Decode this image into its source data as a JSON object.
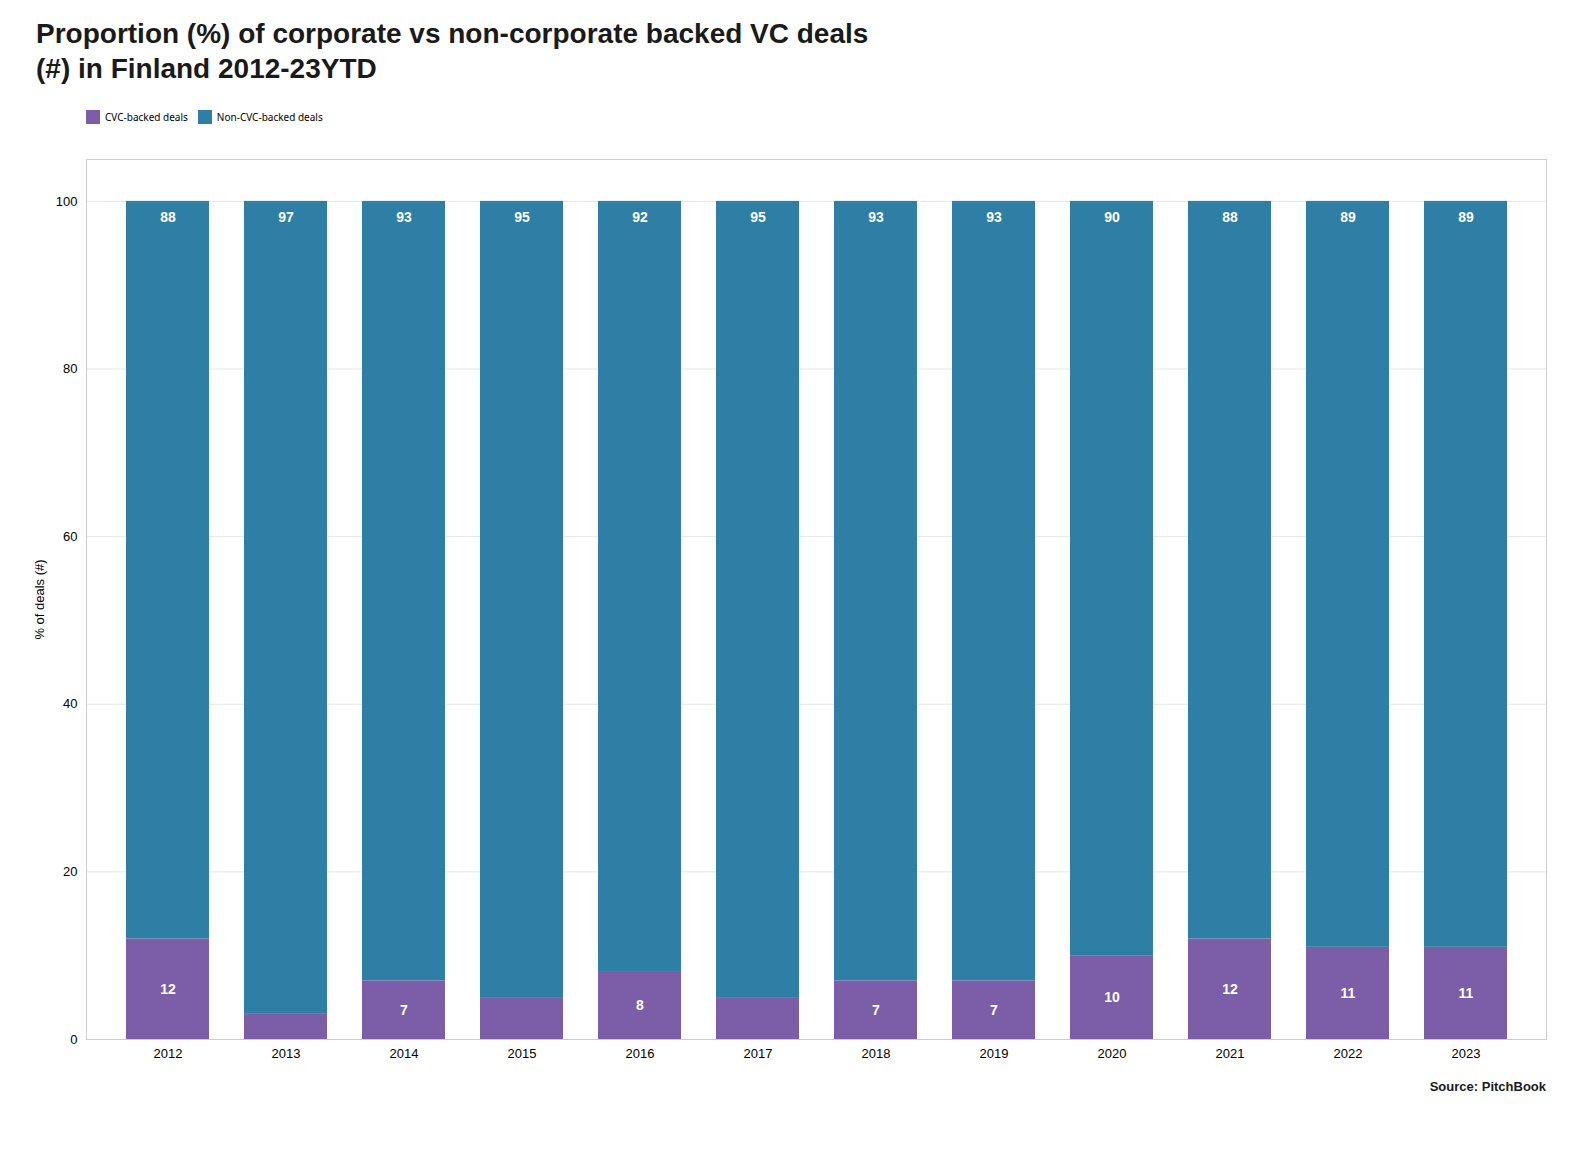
{
  "chart_data": {
    "type": "bar",
    "stacked": true,
    "title": "Proportion (%) of corporate vs non-corporate backed VC deals\n(#) in Finland 2012-23YTD",
    "categories": [
      "2012",
      "2013",
      "2014",
      "2015",
      "2016",
      "2017",
      "2018",
      "2019",
      "2020",
      "2021",
      "2022",
      "2023"
    ],
    "series": [
      {
        "name": "CVC-backed deals",
        "color": "#7B5EA7",
        "values": [
          12,
          3,
          7,
          5,
          8,
          5,
          7,
          7,
          10,
          12,
          11,
          11
        ],
        "value_labels": [
          "12",
          null,
          "7",
          null,
          "8",
          null,
          "7",
          "7",
          "10",
          "12",
          "11",
          "11"
        ]
      },
      {
        "name": "Non-CVC-backed deals",
        "color": "#2E7EA6",
        "values": [
          88,
          97,
          93,
          95,
          92,
          95,
          93,
          93,
          90,
          88,
          89,
          89
        ]
      }
    ],
    "ylabel": "% of deals (#)",
    "ylim": [
      0,
      105
    ],
    "yticks": [
      0,
      20,
      40,
      60,
      80,
      100
    ],
    "grid": true,
    "legend": "upper left",
    "data_labels": true,
    "annotations": [
      "Source: PitchBook"
    ]
  }
}
